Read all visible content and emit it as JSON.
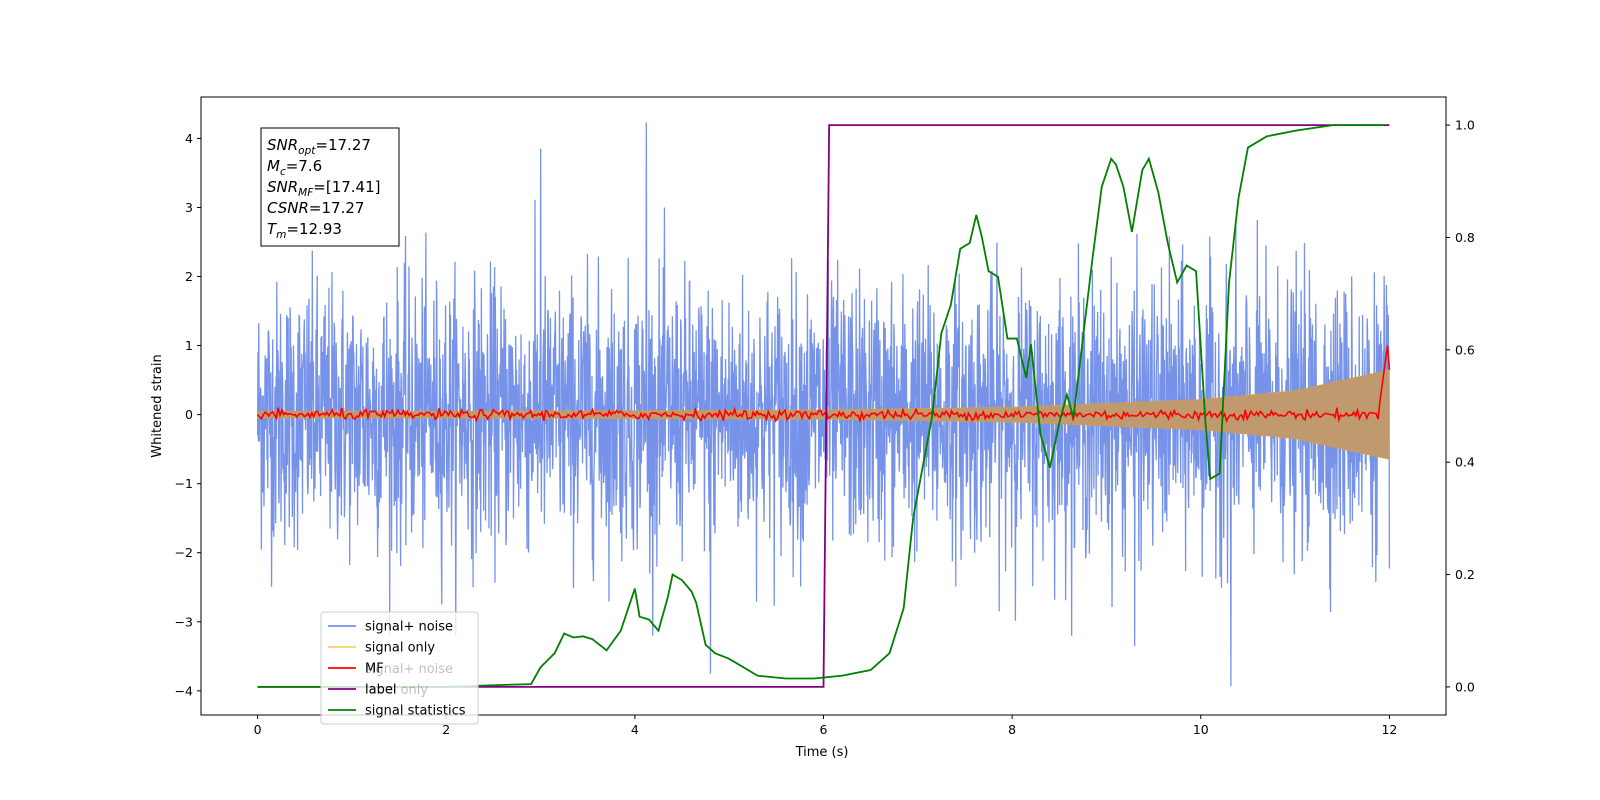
{
  "chart_data": {
    "type": "line",
    "xlabel": "Time (s)",
    "ylabel_left": "Whitened strain",
    "ylabel_right": "",
    "xlim": [
      -0.6,
      12.6
    ],
    "ylim_left": [
      -4.35,
      4.6
    ],
    "ylim_right": [
      -0.05,
      1.05
    ],
    "x_ticks": [
      0,
      2,
      4,
      6,
      8,
      10,
      12
    ],
    "y_ticks_left": [
      -4,
      -3,
      -2,
      -1,
      0,
      1,
      2,
      3,
      4
    ],
    "y_ticks_right": [
      0.0,
      0.2,
      0.4,
      0.6,
      0.8,
      1.0
    ],
    "x_tick_labels": [
      "0",
      "2",
      "4",
      "6",
      "8",
      "10",
      "12"
    ],
    "y_tick_labels_left": [
      "−4",
      "−3",
      "−2",
      "−1",
      "0",
      "1",
      "2",
      "3",
      "4"
    ],
    "y_tick_labels_right": [
      "0.0",
      "0.2",
      "0.4",
      "0.6",
      "0.8",
      "1.0"
    ],
    "grid": false,
    "legend_position": "bottom-left",
    "legend_entries": [
      {
        "name": "signal+ noise",
        "color": "#4169e1"
      },
      {
        "name": "signal only",
        "color": "#ffa500"
      },
      {
        "name": "MF",
        "color": "#ff0000"
      },
      {
        "name": "label",
        "color": "#800080"
      },
      {
        "name": "signal statistics",
        "color": "#008000"
      }
    ],
    "legend_ghost_entries": [
      "signal+ noise",
      "label only"
    ],
    "annotation": {
      "lines": [
        {
          "base": "SNR",
          "sub": "opt",
          "value": "=17.27"
        },
        {
          "base": "M",
          "sub": "c",
          "value": "=7.6"
        },
        {
          "base": "SNR",
          "sub": "MF",
          "value": "=[17.41]"
        },
        {
          "base": "CSNR",
          "sub": "",
          "value": "=17.27"
        },
        {
          "base": "T",
          "sub": "m",
          "value": "=12.93"
        }
      ]
    },
    "series": [
      {
        "name": "signal+ noise",
        "axis": "left",
        "color": "#4169e1",
        "description_range": [
          -3.9,
          4.25
        ],
        "peaks": [
          {
            "x": 4.12,
            "y": 4.23
          },
          {
            "x": 3.0,
            "y": 3.85
          },
          {
            "x": 10.32,
            "y": -3.93
          },
          {
            "x": 4.8,
            "y": -3.75
          },
          {
            "x": 9.3,
            "y": -3.35
          }
        ]
      },
      {
        "name": "signal only",
        "axis": "left",
        "color": "#ffa500",
        "envelope": {
          "x": [
            0,
            2,
            4,
            6,
            8,
            10,
            11,
            12
          ],
          "amplitude": [
            0.05,
            0.05,
            0.06,
            0.07,
            0.11,
            0.22,
            0.35,
            0.65
          ]
        }
      },
      {
        "name": "MF",
        "axis": "left",
        "color": "#ff0000",
        "end_points": [
          {
            "x": 11.9,
            "y": 0.2
          },
          {
            "x": 11.98,
            "y": 1.0
          },
          {
            "x": 12.0,
            "y": 0.65
          }
        ]
      },
      {
        "name": "label",
        "axis": "right",
        "color": "#800080",
        "x": [
          0,
          6.0,
          6.06,
          12.0
        ],
        "y": [
          0.0,
          0.0,
          1.0,
          1.0
        ]
      },
      {
        "name": "signal statistics",
        "axis": "right",
        "color": "#008000",
        "x": [
          0,
          0.4,
          1.0,
          1.5,
          2.0,
          2.5,
          2.9,
          3.0,
          3.15,
          3.25,
          3.35,
          3.45,
          3.55,
          3.7,
          3.85,
          4.0,
          4.05,
          4.15,
          4.25,
          4.35,
          4.4,
          4.5,
          4.6,
          4.65,
          4.75,
          4.85,
          5.0,
          5.3,
          5.6,
          5.9,
          6.2,
          6.5,
          6.7,
          6.85,
          6.95,
          7.05,
          7.15,
          7.25,
          7.35,
          7.45,
          7.55,
          7.62,
          7.68,
          7.75,
          7.85,
          7.95,
          8.05,
          8.15,
          8.2,
          8.3,
          8.4,
          8.5,
          8.58,
          8.65,
          8.75,
          8.85,
          8.95,
          9.05,
          9.1,
          9.18,
          9.27,
          9.38,
          9.45,
          9.55,
          9.65,
          9.75,
          9.85,
          9.95,
          10.05,
          10.1,
          10.2,
          10.3,
          10.4,
          10.5,
          10.7,
          11.0,
          11.4,
          11.95
        ],
        "y": [
          0.0,
          0.0,
          0.0,
          0.0,
          0.0,
          0.003,
          0.005,
          0.035,
          0.06,
          0.095,
          0.088,
          0.09,
          0.085,
          0.065,
          0.1,
          0.175,
          0.125,
          0.12,
          0.1,
          0.16,
          0.2,
          0.19,
          0.17,
          0.15,
          0.075,
          0.06,
          0.05,
          0.02,
          0.015,
          0.015,
          0.02,
          0.03,
          0.06,
          0.14,
          0.3,
          0.39,
          0.48,
          0.63,
          0.68,
          0.78,
          0.79,
          0.84,
          0.8,
          0.74,
          0.73,
          0.62,
          0.62,
          0.55,
          0.61,
          0.45,
          0.39,
          0.47,
          0.52,
          0.48,
          0.62,
          0.76,
          0.89,
          0.94,
          0.93,
          0.89,
          0.81,
          0.92,
          0.94,
          0.88,
          0.79,
          0.72,
          0.75,
          0.74,
          0.47,
          0.37,
          0.38,
          0.72,
          0.87,
          0.96,
          0.98,
          0.99,
          1.0,
          1.0
        ]
      }
    ]
  }
}
